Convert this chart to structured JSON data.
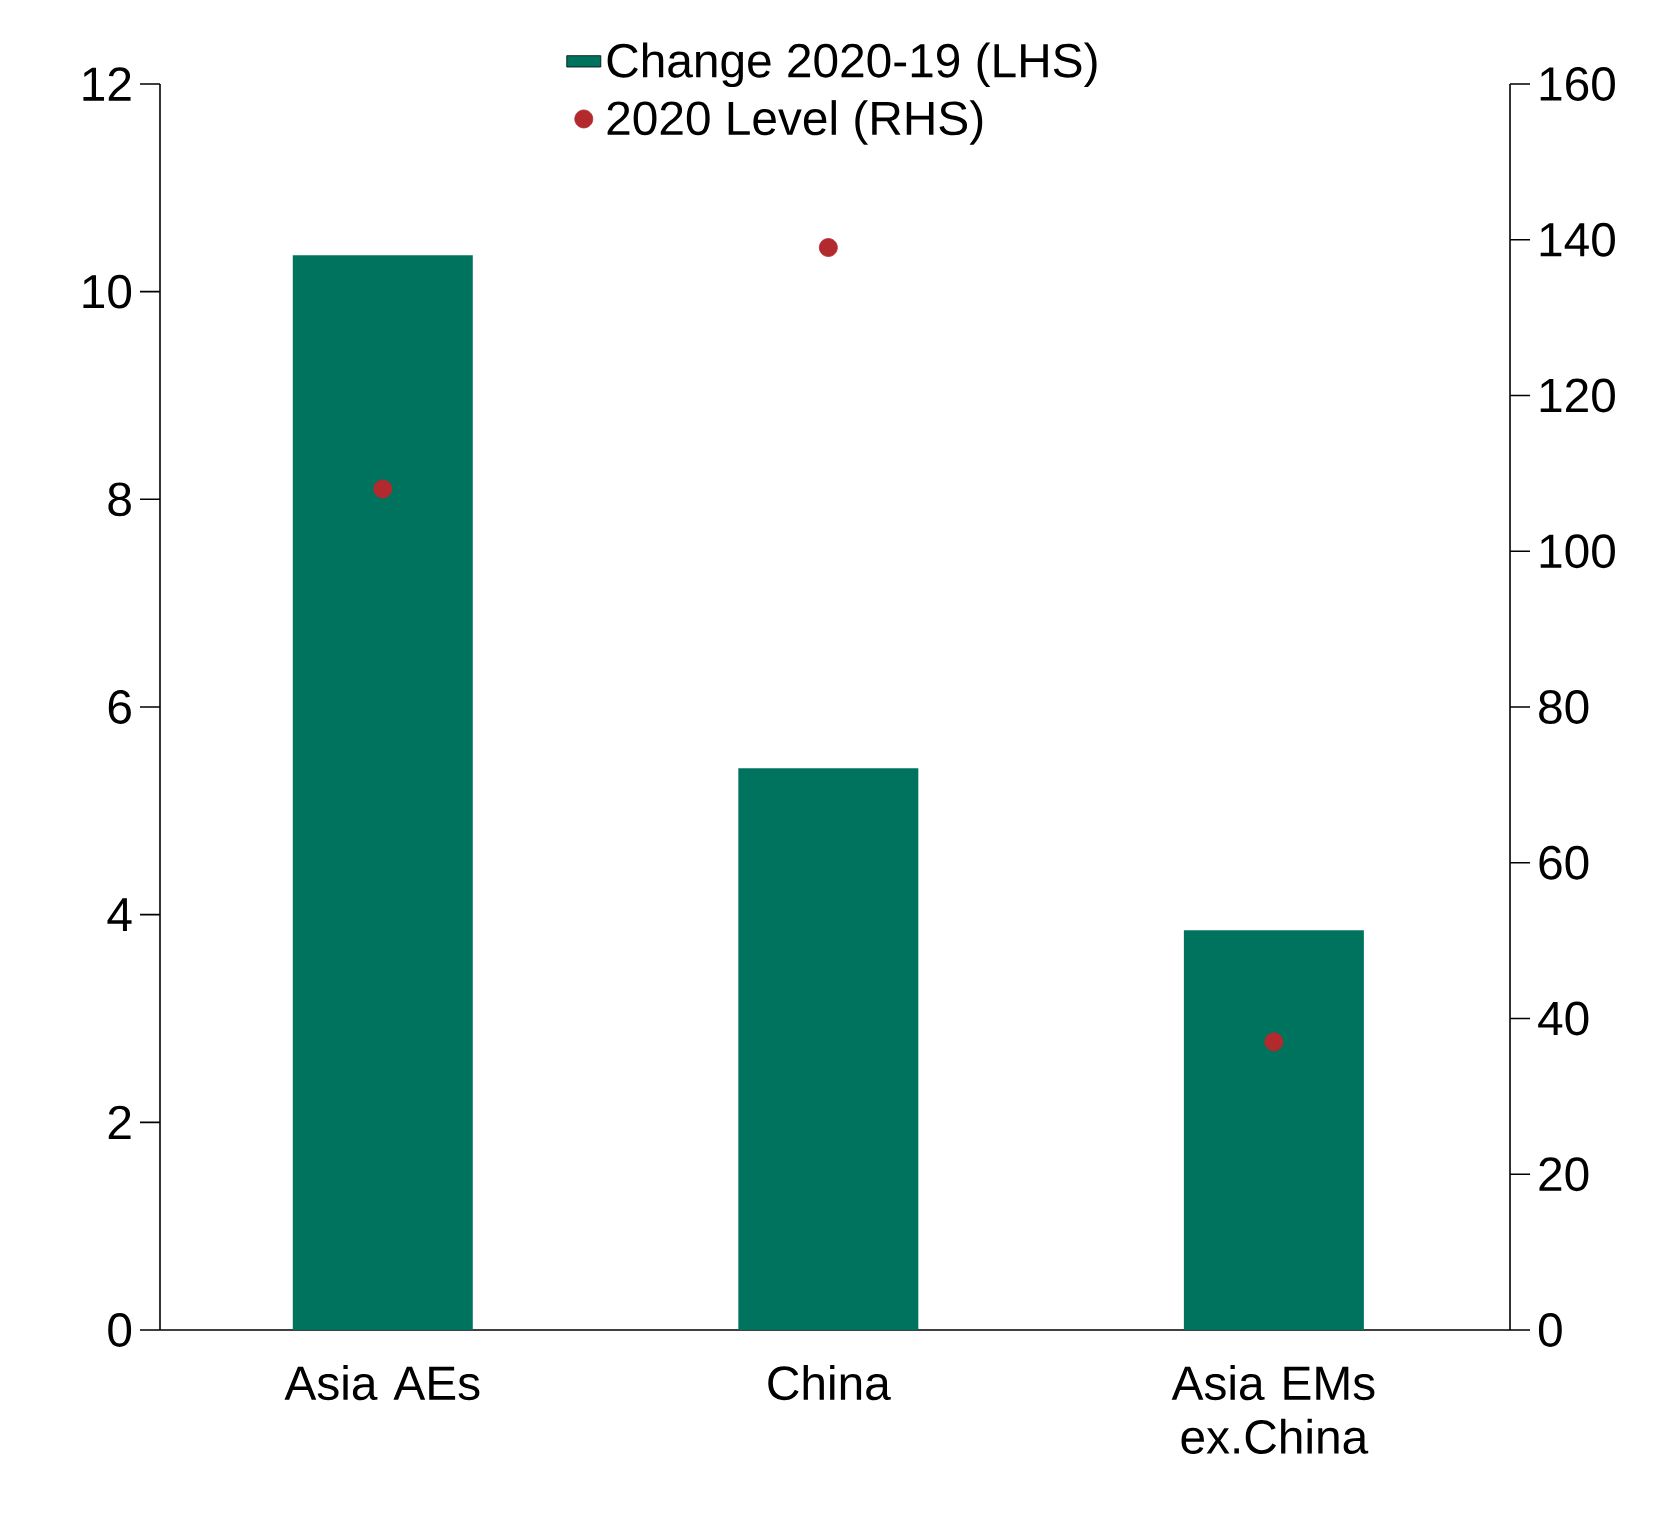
{
  "chart_data": {
    "type": "bar",
    "categories": [
      "Asia AEs",
      "China",
      "Asia EMs ex.China"
    ],
    "series": [
      {
        "name": "Change 2020-19 (LHS)",
        "color": "#00735f",
        "values": [
          10.35,
          5.41,
          3.85
        ]
      },
      {
        "name": "2020 Level (RHS)",
        "type": "scatter",
        "axis": "y2",
        "color": "#b22a2e",
        "marker": "circle",
        "values": [
          108,
          139,
          37
        ]
      }
    ],
    "ylim": [
      0,
      12
    ],
    "yticks": [
      0,
      2,
      4,
      6,
      8,
      10,
      12
    ],
    "y2lim": [
      0,
      160
    ],
    "y2ticks": [
      0,
      20,
      40,
      60,
      80,
      100,
      120,
      140,
      160
    ],
    "legend": "top",
    "grid": false
  }
}
